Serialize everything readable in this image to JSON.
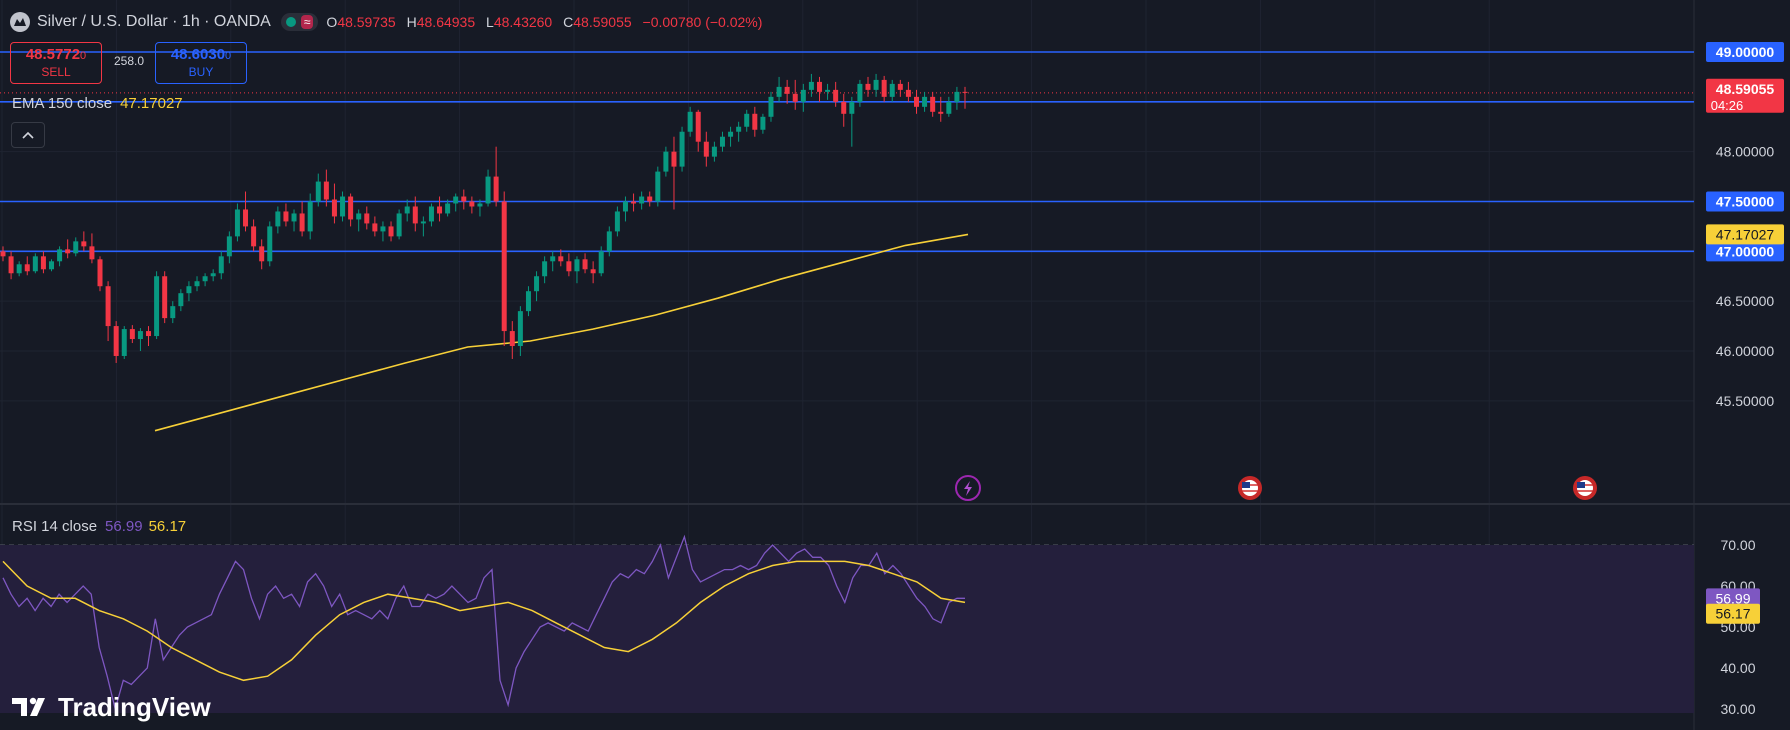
{
  "header": {
    "symbol": "Silver / U.S. Dollar · 1h · OANDA",
    "ohlc": {
      "open_label": "O",
      "open": "48.59735",
      "high_label": "H",
      "high": "48.64935",
      "low_label": "L",
      "low": "48.43260",
      "close_label": "C",
      "close": "48.59055",
      "change": "−0.00780 (−0.02%)"
    },
    "market_status_icon": "market-open-dot",
    "wave_icon": "≈"
  },
  "trade": {
    "sell_price": "48.5772",
    "sell_price_small": "0",
    "sell_label": "SELL",
    "spread": "258.0",
    "buy_price": "48.6030",
    "buy_price_small": "0",
    "buy_label": "BUY"
  },
  "ema_legend": {
    "label": "EMA 150 close",
    "value": "47.17027"
  },
  "rsi_legend": {
    "label": "RSI 14 close",
    "value": "56.99",
    "ma_value": "56.17"
  },
  "collapse_icon": "chevron-up-icon",
  "brand": {
    "name": "TradingView"
  },
  "colors": {
    "background": "#161a25",
    "up": "#089981",
    "down": "#f23645",
    "ema": "#f7d038",
    "rsi": "#7e57c2",
    "rsi_ma": "#f7d038",
    "hline": "#2962ff",
    "sell": "#f23645",
    "buy": "#2962ff"
  },
  "price_axis": {
    "ticks": [
      "49.00000",
      "48.50000",
      "48.00000",
      "47.50000",
      "47.00000",
      "46.50000",
      "46.00000",
      "45.50000"
    ],
    "highlight_lines": [
      "49.00000",
      "48.50000",
      "47.50000",
      "47.00000"
    ],
    "current_price": "48.59055",
    "countdown": "04:26",
    "ema_tag": "47.17027"
  },
  "rsi_axis": {
    "ticks": [
      "70.00",
      "60.00",
      "50.00",
      "40.00",
      "30.00"
    ],
    "rsi_tag": "56.99",
    "ma_tag": "56.17"
  },
  "event_icons": [
    "lightning-event-icon",
    "us-flag-event-icon",
    "us-flag-event-icon"
  ],
  "chart_data": [
    {
      "type": "candlestick",
      "title": "Silver / U.S. Dollar · 1h · OANDA",
      "ylim": [
        45.2,
        49.25
      ],
      "horizontal_lines": [
        49.0,
        48.5,
        47.5,
        47.0
      ],
      "candles": [
        [
          47.0,
          47.05,
          46.9,
          46.95
        ],
        [
          46.95,
          47.0,
          46.72,
          46.78
        ],
        [
          46.78,
          46.9,
          46.75,
          46.87
        ],
        [
          46.87,
          46.95,
          46.76,
          46.8
        ],
        [
          46.8,
          46.98,
          46.78,
          46.95
        ],
        [
          46.95,
          47.0,
          46.78,
          46.82
        ],
        [
          46.82,
          46.92,
          46.8,
          46.9
        ],
        [
          46.9,
          47.05,
          46.85,
          47.02
        ],
        [
          47.02,
          47.12,
          46.93,
          46.98
        ],
        [
          46.98,
          47.14,
          46.95,
          47.1
        ],
        [
          47.1,
          47.2,
          47.0,
          47.05
        ],
        [
          47.05,
          47.18,
          46.88,
          46.92
        ],
        [
          46.92,
          46.95,
          46.6,
          46.65
        ],
        [
          46.65,
          46.7,
          46.1,
          46.25
        ],
        [
          46.25,
          46.3,
          45.88,
          45.95
        ],
        [
          45.95,
          46.25,
          45.92,
          46.22
        ],
        [
          46.22,
          46.26,
          46.08,
          46.12
        ],
        [
          46.12,
          46.23,
          46.0,
          46.2
        ],
        [
          46.2,
          46.25,
          46.05,
          46.15
        ],
        [
          46.15,
          46.8,
          46.12,
          46.75
        ],
        [
          46.75,
          46.8,
          46.28,
          46.33
        ],
        [
          46.33,
          46.5,
          46.28,
          46.45
        ],
        [
          46.45,
          46.62,
          46.4,
          46.58
        ],
        [
          46.58,
          46.7,
          46.5,
          46.65
        ],
        [
          46.65,
          46.75,
          46.6,
          46.7
        ],
        [
          46.7,
          46.78,
          46.65,
          46.75
        ],
        [
          46.75,
          46.82,
          46.7,
          46.78
        ],
        [
          46.78,
          47.0,
          46.72,
          46.95
        ],
        [
          46.95,
          47.2,
          46.88,
          47.15
        ],
        [
          47.15,
          47.48,
          47.1,
          47.42
        ],
        [
          47.42,
          47.6,
          47.2,
          47.25
        ],
        [
          47.25,
          47.32,
          47.0,
          47.05
        ],
        [
          47.05,
          47.12,
          46.82,
          46.9
        ],
        [
          46.9,
          47.3,
          46.85,
          47.25
        ],
        [
          47.25,
          47.45,
          47.18,
          47.4
        ],
        [
          47.4,
          47.48,
          47.25,
          47.3
        ],
        [
          47.3,
          47.42,
          47.2,
          47.38
        ],
        [
          47.38,
          47.5,
          47.15,
          47.2
        ],
        [
          47.2,
          47.58,
          47.12,
          47.5
        ],
        [
          47.5,
          47.78,
          47.45,
          47.7
        ],
        [
          47.7,
          47.82,
          47.45,
          47.52
        ],
        [
          47.52,
          47.68,
          47.28,
          47.35
        ],
        [
          47.35,
          47.6,
          47.3,
          47.55
        ],
        [
          47.55,
          47.58,
          47.25,
          47.32
        ],
        [
          47.32,
          47.42,
          47.2,
          47.38
        ],
        [
          47.38,
          47.45,
          47.22,
          47.28
        ],
        [
          47.28,
          47.35,
          47.15,
          47.2
        ],
        [
          47.2,
          47.3,
          47.1,
          47.25
        ],
        [
          47.25,
          47.3,
          47.1,
          47.15
        ],
        [
          47.15,
          47.42,
          47.12,
          47.38
        ],
        [
          47.38,
          47.52,
          47.3,
          47.45
        ],
        [
          47.45,
          47.55,
          47.2,
          47.28
        ],
        [
          47.28,
          47.35,
          47.15,
          47.3
        ],
        [
          47.3,
          47.48,
          47.25,
          47.45
        ],
        [
          47.45,
          47.55,
          47.3,
          47.38
        ],
        [
          47.38,
          47.52,
          47.35,
          47.48
        ],
        [
          47.48,
          47.58,
          47.4,
          47.55
        ],
        [
          47.55,
          47.62,
          47.42,
          47.5
        ],
        [
          47.5,
          47.55,
          47.38,
          47.45
        ],
        [
          47.45,
          47.52,
          47.35,
          47.48
        ],
        [
          47.48,
          47.82,
          47.45,
          47.75
        ],
        [
          47.75,
          48.05,
          47.45,
          47.5
        ],
        [
          47.5,
          47.6,
          46.05,
          46.2
        ],
        [
          46.2,
          46.3,
          45.92,
          46.05
        ],
        [
          46.05,
          46.45,
          45.95,
          46.4
        ],
        [
          46.4,
          46.65,
          46.35,
          46.6
        ],
        [
          46.6,
          46.8,
          46.5,
          46.75
        ],
        [
          46.75,
          46.95,
          46.68,
          46.9
        ],
        [
          46.9,
          47.0,
          46.8,
          46.95
        ],
        [
          46.95,
          47.02,
          46.85,
          46.9
        ],
        [
          46.9,
          46.98,
          46.75,
          46.8
        ],
        [
          46.8,
          46.95,
          46.68,
          46.92
        ],
        [
          46.92,
          46.98,
          46.78,
          46.82
        ],
        [
          46.82,
          46.9,
          46.68,
          46.78
        ],
        [
          46.78,
          47.05,
          46.75,
          47.0
        ],
        [
          47.0,
          47.25,
          46.95,
          47.2
        ],
        [
          47.2,
          47.45,
          47.15,
          47.4
        ],
        [
          47.4,
          47.55,
          47.3,
          47.5
        ],
        [
          47.5,
          47.58,
          47.4,
          47.48
        ],
        [
          47.48,
          47.6,
          47.42,
          47.55
        ],
        [
          47.55,
          47.6,
          47.45,
          47.5
        ],
        [
          47.5,
          47.85,
          47.45,
          47.8
        ],
        [
          47.8,
          48.05,
          47.75,
          48.0
        ],
        [
          48.0,
          48.15,
          47.42,
          47.85
        ],
        [
          47.85,
          48.25,
          47.8,
          48.2
        ],
        [
          48.2,
          48.45,
          48.15,
          48.4
        ],
        [
          48.4,
          48.42,
          48.0,
          48.1
        ],
        [
          48.1,
          48.2,
          47.85,
          47.95
        ],
        [
          47.95,
          48.1,
          47.9,
          48.05
        ],
        [
          48.05,
          48.2,
          48.0,
          48.15
        ],
        [
          48.15,
          48.25,
          48.05,
          48.2
        ],
        [
          48.2,
          48.3,
          48.1,
          48.25
        ],
        [
          48.25,
          48.42,
          48.2,
          48.38
        ],
        [
          48.38,
          48.45,
          48.15,
          48.22
        ],
        [
          48.22,
          48.38,
          48.18,
          48.35
        ],
        [
          48.35,
          48.6,
          48.3,
          48.55
        ],
        [
          48.55,
          48.75,
          48.5,
          48.65
        ],
        [
          48.65,
          48.72,
          48.48,
          48.58
        ],
        [
          48.58,
          48.72,
          48.42,
          48.5
        ],
        [
          48.5,
          48.68,
          48.4,
          48.62
        ],
        [
          48.62,
          48.78,
          48.55,
          48.7
        ],
        [
          48.7,
          48.75,
          48.5,
          48.6
        ],
        [
          48.6,
          48.68,
          48.52,
          48.62
        ],
        [
          48.62,
          48.7,
          48.45,
          48.5
        ],
        [
          48.5,
          48.58,
          48.25,
          48.38
        ],
        [
          48.38,
          48.55,
          48.05,
          48.5
        ],
        [
          48.5,
          48.72,
          48.45,
          48.68
        ],
        [
          48.68,
          48.75,
          48.55,
          48.62
        ],
        [
          48.62,
          48.78,
          48.55,
          48.72
        ],
        [
          48.72,
          48.76,
          48.5,
          48.55
        ],
        [
          48.55,
          48.72,
          48.5,
          48.68
        ],
        [
          48.68,
          48.72,
          48.55,
          48.62
        ],
        [
          48.62,
          48.7,
          48.5,
          48.55
        ],
        [
          48.55,
          48.62,
          48.38,
          48.45
        ],
        [
          48.45,
          48.6,
          48.4,
          48.55
        ],
        [
          48.55,
          48.6,
          48.35,
          48.4
        ],
        [
          48.4,
          48.55,
          48.3,
          48.38
        ],
        [
          48.38,
          48.55,
          48.35,
          48.5
        ],
        [
          48.5,
          48.65,
          48.42,
          48.6
        ],
        [
          48.6,
          48.65,
          48.43,
          48.59
        ]
      ],
      "ema_150": [
        45.2,
        45.37,
        45.54,
        45.71,
        45.88,
        46.04,
        46.1,
        46.22,
        46.36,
        46.53,
        46.72,
        46.89,
        47.06,
        47.17
      ]
    },
    {
      "type": "line",
      "title": "RSI 14 close",
      "ylim": [
        30,
        70
      ],
      "reference_lines": [
        70,
        50,
        30
      ],
      "series": [
        {
          "name": "RSI 14",
          "values": [
            62,
            58,
            55,
            57,
            54,
            57,
            55,
            58,
            56,
            58,
            60,
            58,
            45,
            38,
            30,
            37,
            36,
            38,
            40,
            52,
            42,
            45,
            48,
            50,
            51,
            52,
            53,
            58,
            62,
            66,
            64,
            57,
            52,
            58,
            60,
            57,
            58,
            55,
            61,
            63,
            60,
            55,
            58,
            53,
            54,
            53,
            52,
            54,
            52,
            57,
            60,
            55,
            55,
            58,
            57,
            58,
            60,
            58,
            56,
            57,
            62,
            64,
            37,
            31,
            40,
            44,
            47,
            50,
            51,
            50,
            49,
            51,
            50,
            49,
            53,
            57,
            61,
            63,
            62,
            64,
            63,
            66,
            70,
            62,
            67,
            72,
            64,
            61,
            62,
            63,
            64,
            64,
            65,
            64,
            65,
            68,
            70,
            68,
            66,
            68,
            69,
            67,
            67,
            65,
            60,
            56,
            62,
            65,
            65,
            68,
            63,
            65,
            63,
            60,
            57,
            55,
            52,
            51,
            56,
            57,
            57
          ],
          "color": "#7e57c2"
        },
        {
          "name": "RSI MA",
          "values": [
            66,
            60,
            57,
            57,
            54,
            52,
            49,
            45,
            42,
            39,
            37,
            38,
            42,
            48,
            53,
            56,
            58,
            57,
            56,
            54,
            55,
            56,
            54,
            51,
            48,
            45,
            44,
            47,
            51,
            56,
            60,
            63,
            65,
            66,
            66,
            66,
            65,
            63,
            61,
            57,
            56
          ],
          "color": "#f7d038"
        }
      ]
    }
  ]
}
